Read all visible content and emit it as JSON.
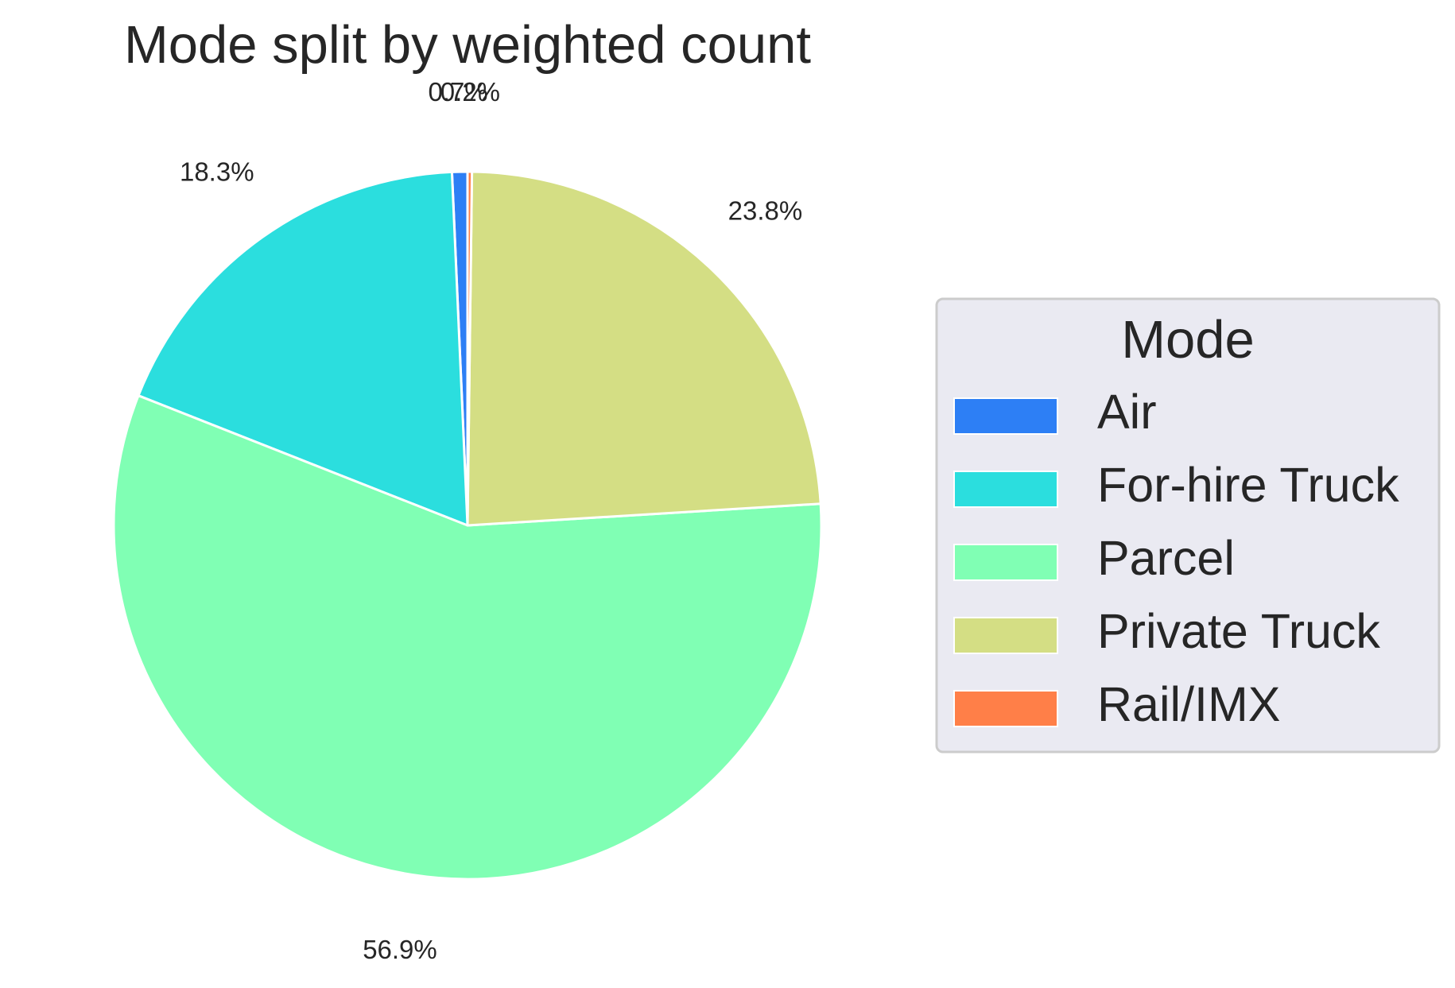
{
  "chart_data": {
    "type": "pie",
    "title": "Mode split by weighted count",
    "slices": [
      {
        "label": "Air",
        "value": 0.7,
        "pct_label": "0.7%",
        "color": "#2d7ff5"
      },
      {
        "label": "For-hire Truck",
        "value": 18.3,
        "pct_label": "18.3%",
        "color": "#2bdede"
      },
      {
        "label": "Parcel",
        "value": 56.9,
        "pct_label": "56.9%",
        "color": "#80ffb4"
      },
      {
        "label": "Private Truck",
        "value": 23.8,
        "pct_label": "23.8%",
        "color": "#d4de84"
      },
      {
        "label": "Rail/IMX",
        "value": 0.2,
        "pct_label": "0.2%",
        "color": "#ff7f48"
      }
    ],
    "start_angle_deg": 90,
    "direction": "counterclockwise",
    "legend": {
      "title": "Mode",
      "placement": "center-right",
      "entries": [
        "Air",
        "For-hire Truck",
        "Parcel",
        "Private Truck",
        "Rail/IMX"
      ]
    }
  }
}
